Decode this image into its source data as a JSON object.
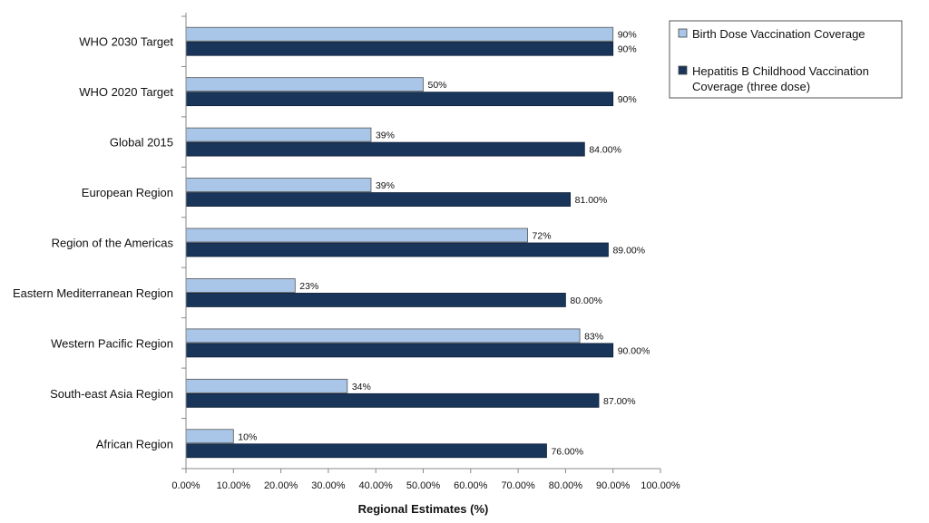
{
  "chart_data": {
    "type": "bar",
    "orientation": "horizontal",
    "categories": [
      "WHO 2030 Target",
      "WHO 2020 Target",
      "Global 2015",
      "European Region",
      "Region of the Americas",
      "Eastern Mediterranean Region",
      "Western Pacific Region",
      "South-east Asia Region",
      "African Region"
    ],
    "series": [
      {
        "name": "Birth Dose Vaccination Coverage",
        "color": "#a9c6e8",
        "values": [
          90,
          50,
          39,
          39,
          72,
          23,
          83,
          34,
          10
        ],
        "labels": [
          "90%",
          "50%",
          "39%",
          "39%",
          "72%",
          "23%",
          "83%",
          "34%",
          "10%"
        ]
      },
      {
        "name": "Hepatitis B Childhood Vaccination Coverage (three dose)",
        "color": "#1a355a",
        "values": [
          90,
          90,
          84,
          81,
          89,
          80,
          90,
          87,
          76
        ],
        "labels": [
          "90%",
          "90%",
          "84.00%",
          "81.00%",
          "89.00%",
          "80.00%",
          "90.00%",
          "87.00%",
          "76.00%"
        ]
      }
    ],
    "xlabel": "Regional Estimates (%)",
    "xlim": [
      0,
      100
    ],
    "xticks": [
      0,
      10,
      20,
      30,
      40,
      50,
      60,
      70,
      80,
      90,
      100
    ],
    "xtick_labels": [
      "0.00%",
      "10.00%",
      "20.00%",
      "30.00%",
      "40.00%",
      "50.00%",
      "60.00%",
      "70.00%",
      "80.00%",
      "90.00%",
      "100.00%"
    ],
    "legend_position": "top-right",
    "grid": false
  }
}
